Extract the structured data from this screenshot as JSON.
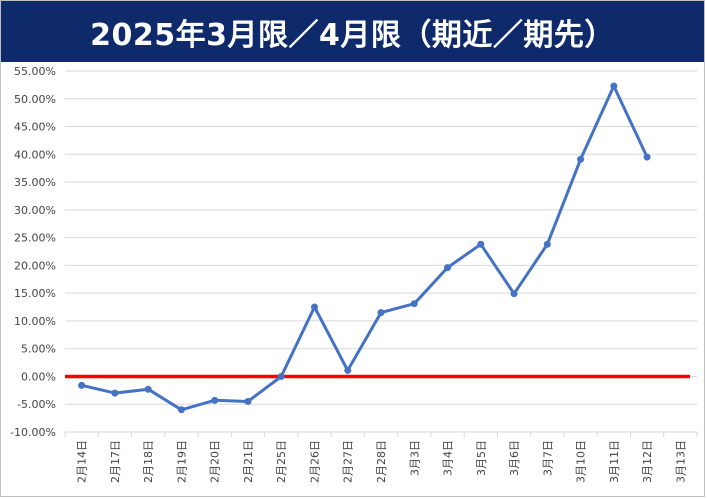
{
  "chart_data": {
    "type": "line",
    "title": "2025年3月限／4月限（期近／期先）",
    "categories": [
      "2月14日",
      "2月17日",
      "2月18日",
      "2月19日",
      "2月20日",
      "2月21日",
      "2月25日",
      "2月26日",
      "2月27日",
      "2月28日",
      "3月3日",
      "3月4日",
      "3月5日",
      "3月6日",
      "3月7日",
      "3月10日",
      "3月11日",
      "3月12日",
      "3月13日"
    ],
    "series": [
      {
        "values": [
          -0.016,
          -0.03,
          -0.023,
          -0.06,
          -0.043,
          -0.045,
          0.0,
          0.125,
          0.011,
          0.115,
          0.131,
          0.196,
          0.238,
          0.149,
          0.238,
          0.391,
          0.523,
          0.395,
          null
        ],
        "color": "#4472c4"
      }
    ],
    "y_ticks": [
      "55.00%",
      "50.00%",
      "45.00%",
      "40.00%",
      "35.00%",
      "30.00%",
      "25.00%",
      "20.00%",
      "15.00%",
      "10.00%",
      "5.00%",
      "0.00%",
      "-5.00%",
      "-10.00%"
    ],
    "ylim": [
      -0.1,
      0.55
    ],
    "grid": true,
    "zero_line_color": "#ff0000",
    "title_bar_color": "#0e2a6b"
  }
}
